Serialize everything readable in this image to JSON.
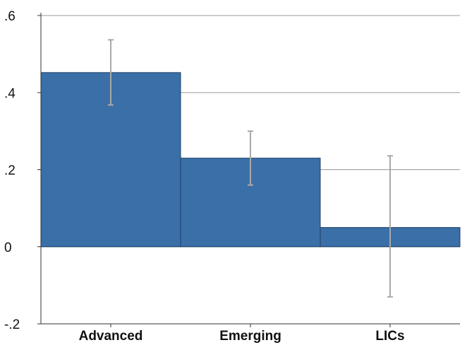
{
  "colors": {
    "bar_fill": "#3A6FA8",
    "bar_stroke": "#1F3F66",
    "error_bar": "#A9A9A9",
    "grid": "#999999",
    "axis": "#333333"
  },
  "chart_data": {
    "type": "bar",
    "title": "",
    "xlabel": "",
    "ylabel": "",
    "categories": [
      "Advanced",
      "Emerging",
      "LICs"
    ],
    "values": [
      0.452,
      0.23,
      0.05
    ],
    "error_low": [
      0.368,
      0.16,
      -0.13
    ],
    "error_high": [
      0.537,
      0.3,
      0.236
    ],
    "ylim": [
      -0.2,
      0.6
    ],
    "yticks": [
      -0.2,
      0,
      0.2,
      0.4,
      0.6
    ],
    "ytick_labels": [
      "-.2",
      "0",
      ".2",
      ".4",
      ".6"
    ],
    "grid": true,
    "legend": "none"
  }
}
